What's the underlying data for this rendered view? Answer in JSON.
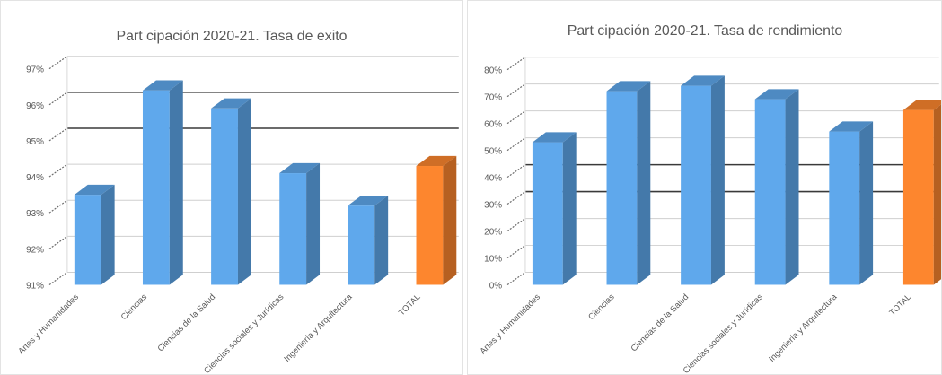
{
  "chart_data": [
    {
      "type": "bar",
      "title": "Part cipación 2020-21. Tasa de exito",
      "categories": [
        "Artes y Humanidades",
        "Ciencias",
        "Ciencias de la Salud",
        "Ciencias sociales y Jurídicas",
        "Ingeniería y Arquitectura",
        "TOTAL"
      ],
      "values": [
        93.5,
        96.4,
        95.9,
        94.1,
        93.2,
        94.3
      ],
      "ylim": [
        91,
        97
      ],
      "yticks": [
        "91%",
        "92%",
        "93%",
        "94%",
        "95%",
        "96%",
        "97%"
      ],
      "grid": true,
      "colors": {
        "bar": "#5fa8ec",
        "highlight": "#fd862e"
      },
      "highlight_index": 5
    },
    {
      "type": "bar",
      "title": "Part cipación 2020-21. Tasa de rendimiento",
      "categories": [
        "Artes y Humanidades",
        "Ciencias",
        "Ciencias de la Salud",
        "Ciencias sociales y Jurídicas",
        "Ingeniería y Arquitectura",
        "TOTAL"
      ],
      "values": [
        53,
        72,
        74,
        69,
        57,
        65
      ],
      "ylim": [
        0,
        80
      ],
      "yticks": [
        "0%",
        "10%",
        "20%",
        "30%",
        "40%",
        "50%",
        "60%",
        "70%",
        "80%"
      ],
      "grid": true,
      "colors": {
        "bar": "#5fa8ec",
        "highlight": "#fd862e"
      },
      "highlight_index": 5
    }
  ]
}
